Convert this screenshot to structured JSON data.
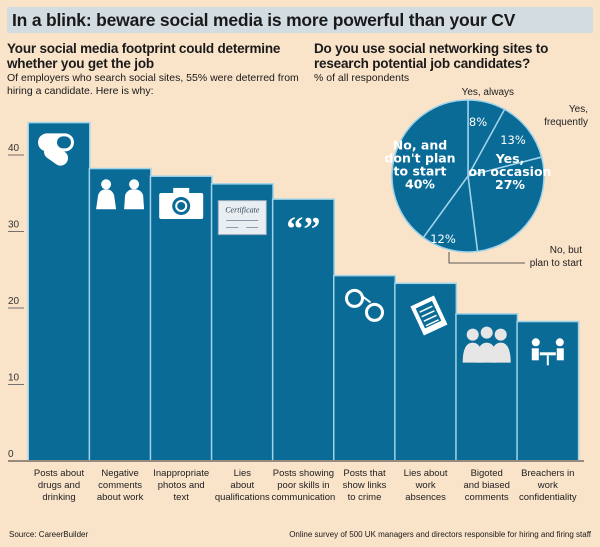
{
  "header": {
    "title": "In a blink: beware social media is more powerful than your CV"
  },
  "left": {
    "heading": "Your social media footprint could determine whether you get the job",
    "subtitle": "Of employers who search social sites, 55% were deterred from hiring a candidate. Here is why:"
  },
  "right": {
    "heading": "Do you use social networking sites to research potential job candidates?",
    "subtitle": "% of all respondents"
  },
  "footer": {
    "source": "Source: CareerBuilder",
    "note": "Online survey of 500 UK managers and directors responsible for hiring and firing staff"
  },
  "chart_data": [
    {
      "type": "bar",
      "categories": [
        "Posts about drugs and drinking",
        "Negative comments about work",
        "Inappropriate photos and text",
        "Lies about qualifications",
        "Posts showing poor skills in communication",
        "Posts that show links to crime",
        "Lies about work absences",
        "Bigoted and biased comments",
        "Breachers in work confidentiality"
      ],
      "category_lines": [
        [
          "Posts about",
          "drugs and",
          "drinking"
        ],
        [
          "Negative",
          "comments",
          "about work"
        ],
        [
          "Inappropriate",
          "photos and",
          "text"
        ],
        [
          "Lies",
          "about",
          "qualifications"
        ],
        [
          "Posts showing",
          "poor skills in",
          "communication"
        ],
        [
          "Posts that",
          "show links",
          "to crime"
        ],
        [
          "Lies about",
          "work",
          "absences"
        ],
        [
          "Bigoted",
          "and biased",
          "comments"
        ],
        [
          "Breachers in",
          "work",
          "confidentiality"
        ]
      ],
      "icons": [
        "pills-icon",
        "couple-icon",
        "camera-icon",
        "certificate-icon",
        "quote-icon",
        "handcuffs-icon",
        "clipboard-icon",
        "group-icon",
        "meeting-icon"
      ],
      "certificate_text": "Certificate",
      "values": [
        44,
        38,
        37,
        36,
        34,
        24,
        23,
        19,
        18
      ],
      "ylim": [
        0,
        45
      ],
      "yticks": [
        "0",
        "10",
        "20",
        "30",
        "40"
      ],
      "ytick_values": [
        0,
        10,
        20,
        30,
        40
      ],
      "colors": {
        "bar": "#0b6b97",
        "gap": "#9fd3ea"
      }
    },
    {
      "type": "pie",
      "slices": [
        {
          "label": "Yes, always",
          "value": 8,
          "inside": [
            "8%"
          ],
          "outside": [
            "Yes, always"
          ]
        },
        {
          "label": "Yes, frequently",
          "value": 13,
          "inside": [
            "13%"
          ],
          "outside": [
            "Yes,",
            "frequently"
          ]
        },
        {
          "label": "Yes, on occasion",
          "value": 27,
          "inside": [
            "Yes,",
            "on occasion",
            "27%"
          ],
          "outside": []
        },
        {
          "label": "No, but plan to start",
          "value": 12,
          "inside": [
            "12%"
          ],
          "outside": [
            "No, but",
            "plan to start"
          ]
        },
        {
          "label": "No, and don't plan to start",
          "value": 40,
          "inside": [
            "No, and",
            "don't plan",
            "to start",
            "40%"
          ],
          "outside": []
        }
      ],
      "colors": {
        "fill": "#0b6b97",
        "divider": "#9fd3ea"
      }
    }
  ]
}
